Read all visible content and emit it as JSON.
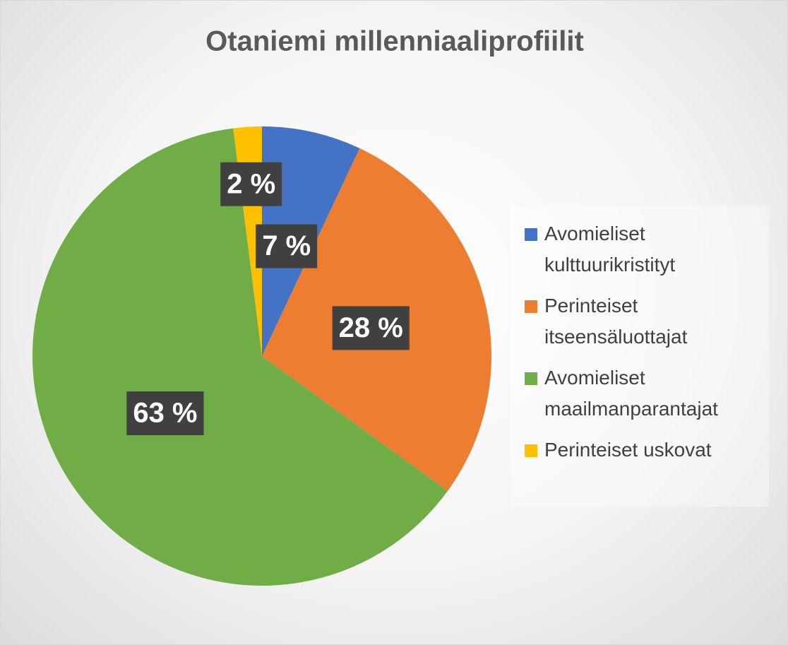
{
  "chart_data": {
    "type": "pie",
    "title": "Otaniemi millenniaaliprofiilit",
    "categories": [
      "Avomieliset kulttuurikristityt",
      "Perinteiset itseensäluottajat",
      "Avomieliset maailmanparantajat",
      "Perinteiset uskovat"
    ],
    "values": [
      7,
      28,
      63,
      2
    ],
    "value_labels": [
      "7 %",
      "28 %",
      "63 %",
      "2 %"
    ],
    "colors": [
      "#4472c4",
      "#ed7d31",
      "#70ad47",
      "#ffc000"
    ],
    "legend": "right"
  }
}
